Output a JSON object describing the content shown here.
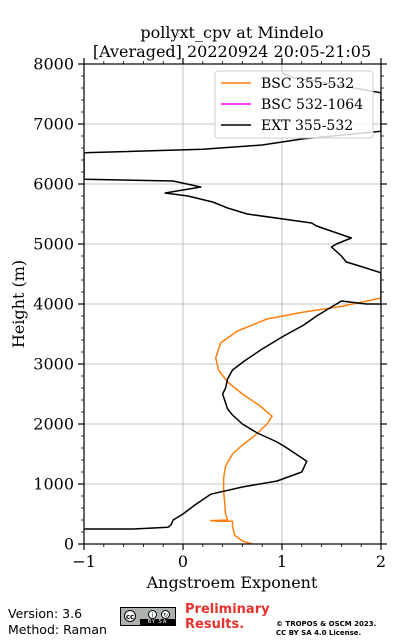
{
  "chart_data": {
    "type": "line",
    "title": "pollyxt_cpv at Mindelo",
    "subtitle": "[Averaged] 20220924 20:05-21:05",
    "xlabel": "Angstroem Exponent",
    "ylabel": "Height (m)",
    "xlim": [
      -1,
      2
    ],
    "ylim": [
      0,
      8000
    ],
    "xticks": [
      -1,
      0,
      1,
      2
    ],
    "xtick_labels": [
      "−1",
      "0",
      "1",
      "2"
    ],
    "yticks": [
      0,
      1000,
      2000,
      3000,
      4000,
      5000,
      6000,
      7000,
      8000
    ],
    "ytick_labels": [
      "0",
      "1000",
      "2000",
      "3000",
      "4000",
      "5000",
      "6000",
      "7000",
      "8000"
    ],
    "grid": true,
    "legend_position": "top-right",
    "series": [
      {
        "name": "BSC 355-532",
        "color": "#ff7f0e",
        "points": [
          [
            0.7,
            0
          ],
          [
            0.6,
            50
          ],
          [
            0.52,
            150
          ],
          [
            0.5,
            300
          ],
          [
            0.5,
            380
          ],
          [
            0.35,
            380
          ],
          [
            0.28,
            390
          ],
          [
            0.45,
            400
          ],
          [
            0.43,
            500
          ],
          [
            0.42,
            700
          ],
          [
            0.41,
            900
          ],
          [
            0.41,
            1100
          ],
          [
            0.43,
            1300
          ],
          [
            0.5,
            1500
          ],
          [
            0.6,
            1650
          ],
          [
            0.72,
            1800
          ],
          [
            0.85,
            2000
          ],
          [
            0.9,
            2130
          ],
          [
            0.78,
            2300
          ],
          [
            0.6,
            2500
          ],
          [
            0.45,
            2700
          ],
          [
            0.36,
            2900
          ],
          [
            0.33,
            3100
          ],
          [
            0.38,
            3350
          ],
          [
            0.55,
            3550
          ],
          [
            0.85,
            3750
          ],
          [
            1.2,
            3860
          ],
          [
            1.6,
            3960
          ],
          [
            2.0,
            4100
          ]
        ]
      },
      {
        "name": "BSC 532-1064",
        "color": "#ff00ff",
        "points": []
      },
      {
        "name": "EXT 355-532",
        "color": "#000000",
        "points": [
          [
            -1,
            250
          ],
          [
            -0.5,
            250
          ],
          [
            -0.15,
            280
          ],
          [
            -0.12,
            320
          ],
          [
            -0.1,
            400
          ],
          [
            0.0,
            500
          ],
          [
            0.12,
            650
          ],
          [
            0.28,
            830
          ],
          [
            0.6,
            950
          ],
          [
            0.95,
            1050
          ],
          [
            1.2,
            1200
          ],
          [
            1.25,
            1380
          ],
          [
            1.05,
            1600
          ],
          [
            0.95,
            1700
          ],
          [
            0.75,
            1850
          ],
          [
            0.6,
            2000
          ],
          [
            0.5,
            2150
          ],
          [
            0.45,
            2250
          ],
          [
            0.4,
            2500
          ],
          [
            0.43,
            2600
          ],
          [
            0.45,
            2750
          ],
          [
            0.5,
            2900
          ],
          [
            0.62,
            3050
          ],
          [
            0.8,
            3250
          ],
          [
            1.0,
            3450
          ],
          [
            1.22,
            3650
          ],
          [
            1.35,
            3800
          ],
          [
            1.5,
            3950
          ],
          [
            1.6,
            4050
          ],
          [
            1.85,
            4000
          ],
          [
            2.0,
            4000
          ],
          [
            2.0,
            4520
          ],
          [
            1.75,
            4650
          ],
          [
            1.65,
            4700
          ],
          [
            1.6,
            4800
          ],
          [
            1.5,
            4950
          ],
          [
            1.55,
            5000
          ],
          [
            1.7,
            5100
          ],
          [
            1.35,
            5300
          ],
          [
            1.3,
            5350
          ],
          [
            0.65,
            5500
          ],
          [
            0.45,
            5600
          ],
          [
            0.3,
            5700
          ],
          [
            0.05,
            5800
          ],
          [
            -0.18,
            5850
          ],
          [
            0.0,
            5900
          ],
          [
            0.18,
            5950
          ],
          [
            -0.1,
            6050
          ],
          [
            -1.0,
            6080
          ],
          [
            -1.0,
            6520
          ],
          [
            0.2,
            6580
          ],
          [
            0.8,
            6650
          ],
          [
            1.2,
            6750
          ],
          [
            2.0,
            6880
          ],
          [
            2.0,
            7520
          ],
          [
            1.1,
            7780
          ],
          [
            1.0,
            7850
          ]
        ]
      }
    ]
  },
  "footer": {
    "version": "Version: 3.6",
    "method": "Method: Raman",
    "preliminary_line1": "Preliminary",
    "preliminary_line2": "Results.",
    "copyright_line1": "© TROPOS & OSCM 2023.",
    "copyright_line2": "CC BY SA 4.0 License.",
    "cc_left_text": "cc",
    "cc_icon_by": "i",
    "cc_icon_sa": "↻",
    "cc_strip_text": "BY SA"
  }
}
